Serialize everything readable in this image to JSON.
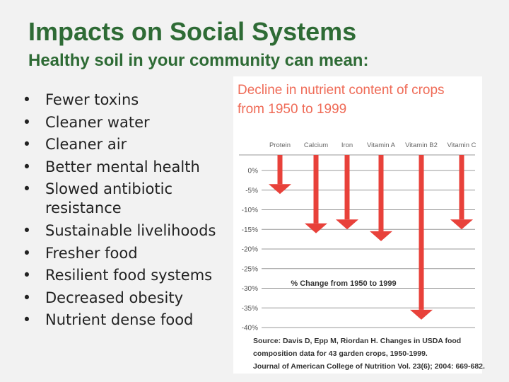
{
  "slide": {
    "title": "Impacts on Social Systems",
    "subtitle": "Healthy soil in your community can mean:",
    "bullets": [
      "Fewer toxins",
      "Cleaner water",
      "Cleaner air",
      "Better mental health",
      "Slowed antibiotic resistance",
      "Sustainable livelihoods",
      "Fresher food",
      "Resilient food systems",
      "Decreased obesity",
      "Nutrient dense food"
    ],
    "bullet_symbol": "•"
  },
  "colors": {
    "title": "#2e6b35",
    "chart_title": "#ef6b57",
    "arrow": "#e8413a",
    "gridline": "#999999"
  },
  "chart_data": {
    "type": "bar",
    "orientation": "downward-arrows",
    "title_lines": [
      "Decline in nutrient content of crops",
      "from 1950 to 1999"
    ],
    "categories": [
      "Protein",
      "Calcium",
      "Iron",
      "Vitamin A",
      "Vitamin B2",
      "Vitamin C"
    ],
    "values": [
      -6,
      -16,
      -15,
      -18,
      -38,
      -15
    ],
    "ylabel": "% Change from 1950 to 1999",
    "ylim": [
      -40,
      0
    ],
    "ticks": [
      {
        "value": 0,
        "label": "0%"
      },
      {
        "value": -5,
        "label": "-5%"
      },
      {
        "value": -10,
        "label": "-10%"
      },
      {
        "value": -15,
        "label": "-15%"
      },
      {
        "value": -20,
        "label": "-20%"
      },
      {
        "value": -25,
        "label": "-25%"
      },
      {
        "value": -30,
        "label": "-30%"
      },
      {
        "value": -35,
        "label": "-35%"
      },
      {
        "value": -40,
        "label": "-40%"
      }
    ],
    "grid": true,
    "source_lines": [
      "Source: Davis D, Epp M, Riordan H. Changes in USDA food",
      "composition data for 43 garden crops, 1950-1999.",
      "Journal of American College of Nutrition Vol. 23(6); 2004: 669-682."
    ]
  }
}
